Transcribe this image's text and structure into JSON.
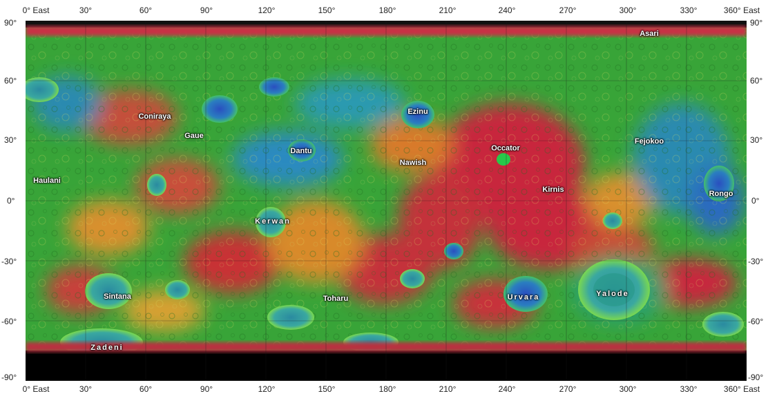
{
  "map": {
    "longitude_labels": [
      "0° East",
      "30°",
      "60°",
      "90°",
      "120°",
      "150°",
      "180°",
      "210°",
      "240°",
      "270°",
      "300°",
      "330°",
      "360° East"
    ],
    "latitude_labels": [
      "90°",
      "60°",
      "30°",
      "0°",
      "-30°",
      "-60°",
      "-90°"
    ],
    "features": [
      {
        "id": "asari",
        "name": "Asari"
      },
      {
        "id": "ezinu",
        "name": "Ezinu"
      },
      {
        "id": "coniraya",
        "name": "Coniraya"
      },
      {
        "id": "gaue",
        "name": "Gaue"
      },
      {
        "id": "dantu",
        "name": "Dantu"
      },
      {
        "id": "occator",
        "name": "Occator"
      },
      {
        "id": "nawish",
        "name": "Nawish"
      },
      {
        "id": "fejokoo",
        "name": "Fejokoo"
      },
      {
        "id": "haulani",
        "name": "Haulani"
      },
      {
        "id": "kirnis",
        "name": "Kirnis"
      },
      {
        "id": "rongo",
        "name": "Rongo"
      },
      {
        "id": "kerwan",
        "name": "Kerwan"
      },
      {
        "id": "sintana",
        "name": "Sintana"
      },
      {
        "id": "toharu",
        "name": "Toharu"
      },
      {
        "id": "urvara",
        "name": "Urvara"
      },
      {
        "id": "yalode",
        "name": "Yalode"
      },
      {
        "id": "zadeni",
        "name": "Zadeni"
      }
    ],
    "colors": {
      "high": "#c8283c",
      "mid_high": "#d87a2a",
      "mid": "#3aa83a",
      "low": "#2a8aa0",
      "lowest": "#2a56b8",
      "polar_gap": "#000000"
    }
  }
}
